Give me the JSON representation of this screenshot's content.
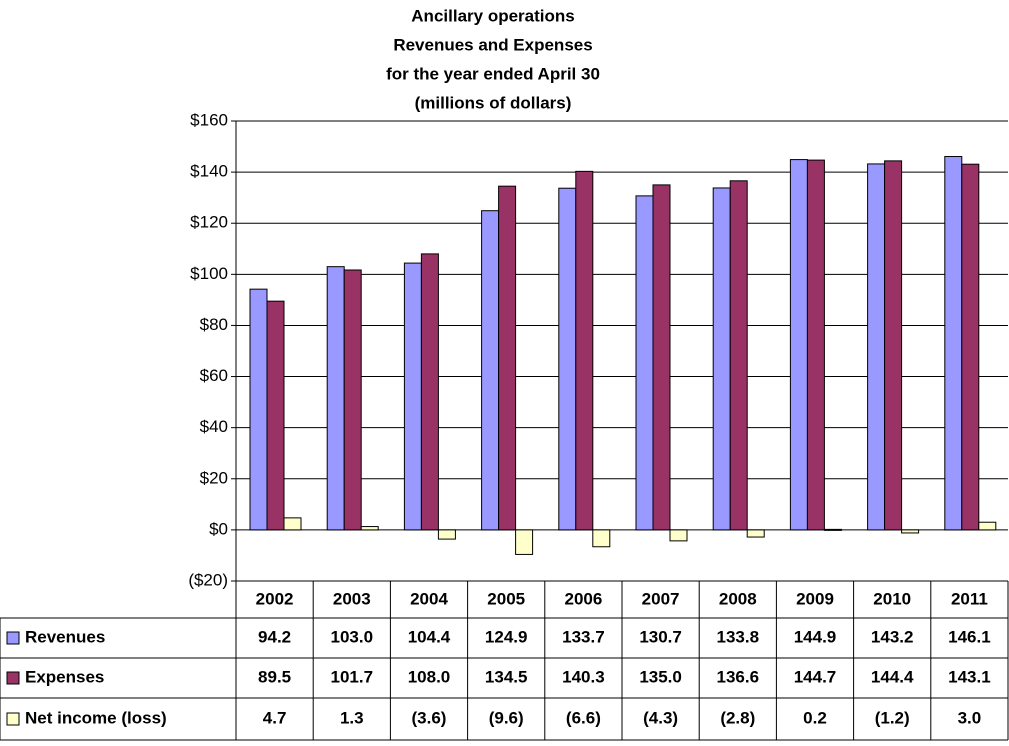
{
  "chart_data": {
    "type": "bar",
    "title": [
      "Ancillary operations",
      "Revenues and Expenses",
      "for the year ended April 30",
      "(millions of dollars)"
    ],
    "categories": [
      "2002",
      "2003",
      "2004",
      "2005",
      "2006",
      "2007",
      "2008",
      "2009",
      "2010",
      "2011"
    ],
    "series": [
      {
        "name": "Revenues",
        "color": "#9999ff",
        "values": [
          94.2,
          103.0,
          104.4,
          124.9,
          133.7,
          130.7,
          133.8,
          144.9,
          143.2,
          146.1
        ],
        "value_labels": [
          "94.2",
          "103.0",
          "104.4",
          "124.9",
          "133.7",
          "130.7",
          "133.8",
          "144.9",
          "143.2",
          "146.1"
        ]
      },
      {
        "name": "Expenses",
        "color": "#993366",
        "values": [
          89.5,
          101.7,
          108.0,
          134.5,
          140.3,
          135.0,
          136.6,
          144.7,
          144.4,
          143.1
        ],
        "value_labels": [
          "89.5",
          "101.7",
          "108.0",
          "134.5",
          "140.3",
          "135.0",
          "136.6",
          "144.7",
          "144.4",
          "143.1"
        ]
      },
      {
        "name": "Net income (loss)",
        "color": "#ffffcc",
        "values": [
          4.7,
          1.3,
          -3.6,
          -9.6,
          -6.6,
          -4.3,
          -2.8,
          0.2,
          -1.2,
          3.0
        ],
        "value_labels": [
          "4.7",
          "1.3",
          "(3.6)",
          "(9.6)",
          "(6.6)",
          "(4.3)",
          "(2.8)",
          "0.2",
          "(1.2)",
          "3.0"
        ]
      }
    ],
    "ylim": [
      -20,
      160
    ],
    "yticks": [
      {
        "value": -20,
        "label": "($20)"
      },
      {
        "value": 0,
        "label": "$0"
      },
      {
        "value": 20,
        "label": "$20"
      },
      {
        "value": 40,
        "label": "$40"
      },
      {
        "value": 60,
        "label": "$60"
      },
      {
        "value": 80,
        "label": "$80"
      },
      {
        "value": 100,
        "label": "$100"
      },
      {
        "value": 120,
        "label": "$120"
      },
      {
        "value": 140,
        "label": "$140"
      },
      {
        "value": 160,
        "label": "$160"
      }
    ],
    "grid": true
  }
}
